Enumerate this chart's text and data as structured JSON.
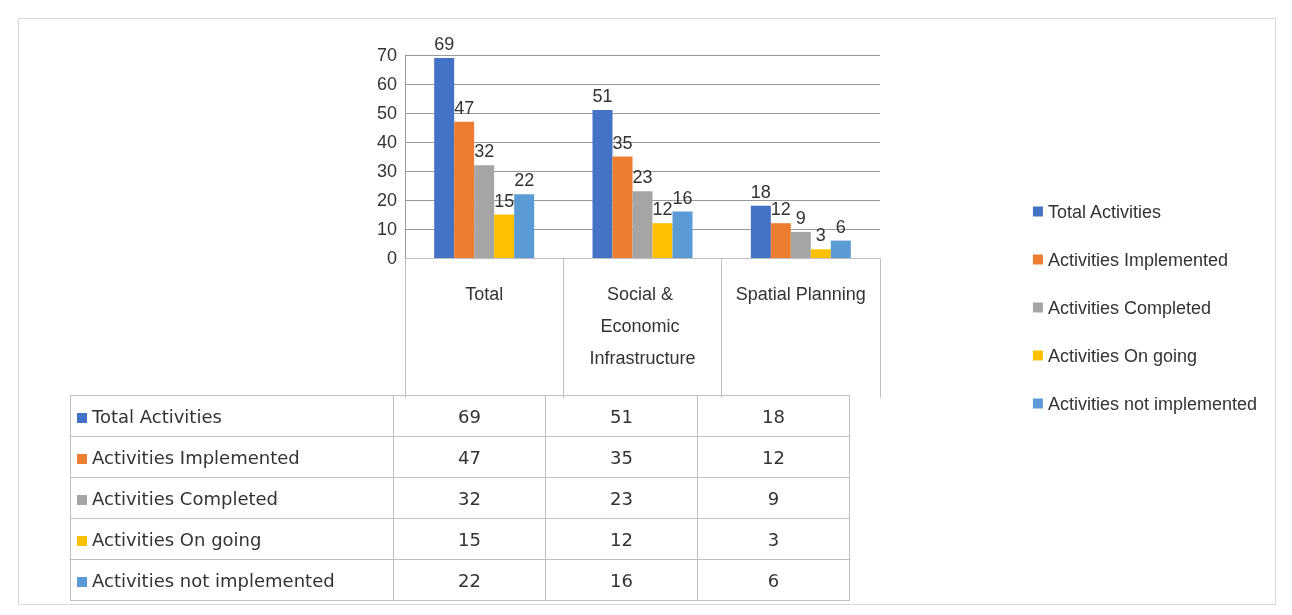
{
  "chart_data": {
    "type": "bar",
    "categories": [
      "Total",
      "Social & Economic Infrastructure",
      "Spatial Planning"
    ],
    "series": [
      {
        "name": "Total Activities",
        "color": "#4472c4",
        "values": [
          69,
          51,
          18
        ],
        "value_labels": [
          "69",
          "51",
          "18"
        ]
      },
      {
        "name": "Activities Implemented",
        "color": "#ed7d31",
        "values": [
          47,
          35,
          12
        ],
        "value_labels": [
          "47",
          "35",
          "12"
        ]
      },
      {
        "name": "Activities Completed",
        "color": "#a5a5a5",
        "values": [
          32,
          23,
          9
        ],
        "value_labels": [
          "32",
          "23",
          "9"
        ]
      },
      {
        "name": "Activities On going",
        "color": "#ffc000",
        "values": [
          15,
          12,
          3
        ],
        "value_labels": [
          "15",
          "12",
          "3"
        ]
      },
      {
        "name": "Activities not implemented",
        "color": "#5b9bd5",
        "values": [
          22,
          16,
          6
        ],
        "value_labels": [
          "22",
          "16",
          "6"
        ]
      }
    ],
    "ylim": [
      0,
      70
    ],
    "yticks": [
      0,
      10,
      20,
      30,
      40,
      50,
      60,
      70
    ],
    "grid": "y",
    "legend": "right",
    "data_labels": true
  }
}
